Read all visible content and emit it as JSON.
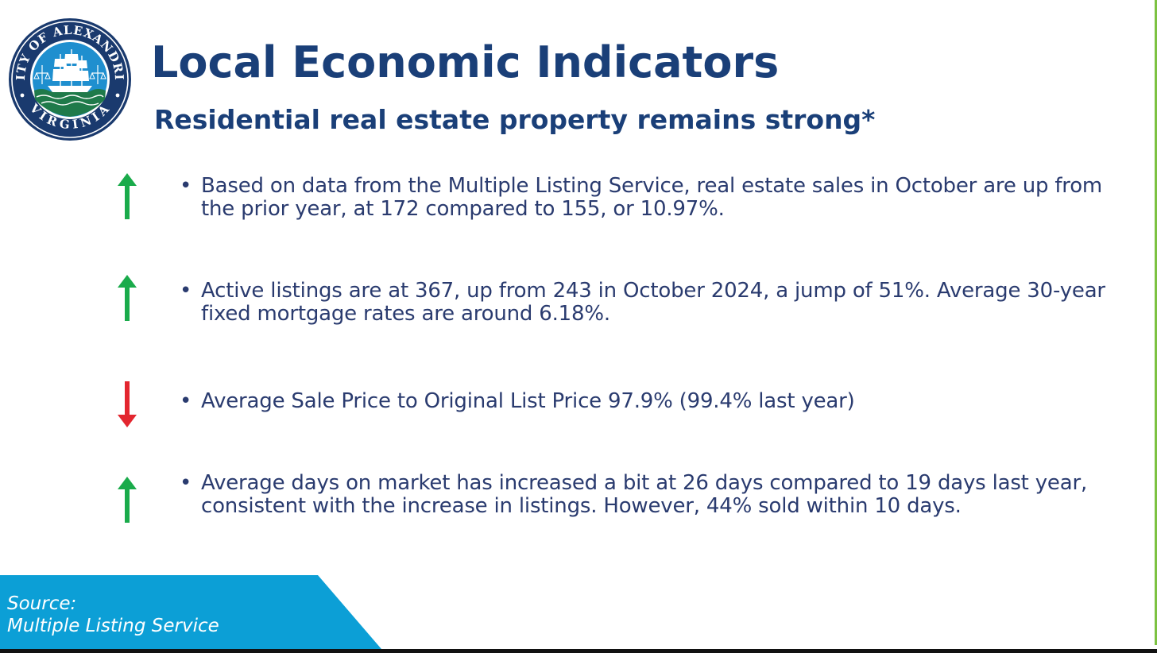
{
  "header": {
    "title": "Local Economic Indicators",
    "subtitle": "Residential real estate property remains strong*"
  },
  "seal": {
    "top_text": "CITY OF ALEXANDRIA",
    "bottom_text": "VIRGINIA"
  },
  "bullets": [
    {
      "trend": "up",
      "icon": "arrow-up-icon",
      "color": "#1aab4b",
      "text": "Based on data from the Multiple Listing Service, real estate sales in October are up from the prior year, at 172 compared to 155, or 10.97%."
    },
    {
      "trend": "up",
      "icon": "arrow-up-icon",
      "color": "#1aab4b",
      "text": "Active listings are at 367, up from 243 in October 2024, a jump of 51%. Average 30-year fixed mortgage rates are around 6.18%."
    },
    {
      "trend": "down",
      "icon": "arrow-down-icon",
      "color": "#e3262f",
      "text": "Average Sale Price to Original List Price 97.9%  (99.4% last year)"
    },
    {
      "trend": "up",
      "icon": "arrow-up-icon",
      "color": "#1aab4b",
      "text": "Average days on market has increased a bit at 26 days compared to 19 days last year, consistent with the increase in listings.  However, 44% sold within 10 days."
    }
  ],
  "source": {
    "label": "Source:",
    "value": "Multiple Listing Service",
    "banner_color": "#0c9fd6"
  },
  "colors": {
    "title": "#1a3f78",
    "body_text": "#2a3b6f",
    "seal_blue": "#1f8fcf",
    "seal_navy": "#1a3a6e",
    "accent_green": "#7cc242"
  }
}
